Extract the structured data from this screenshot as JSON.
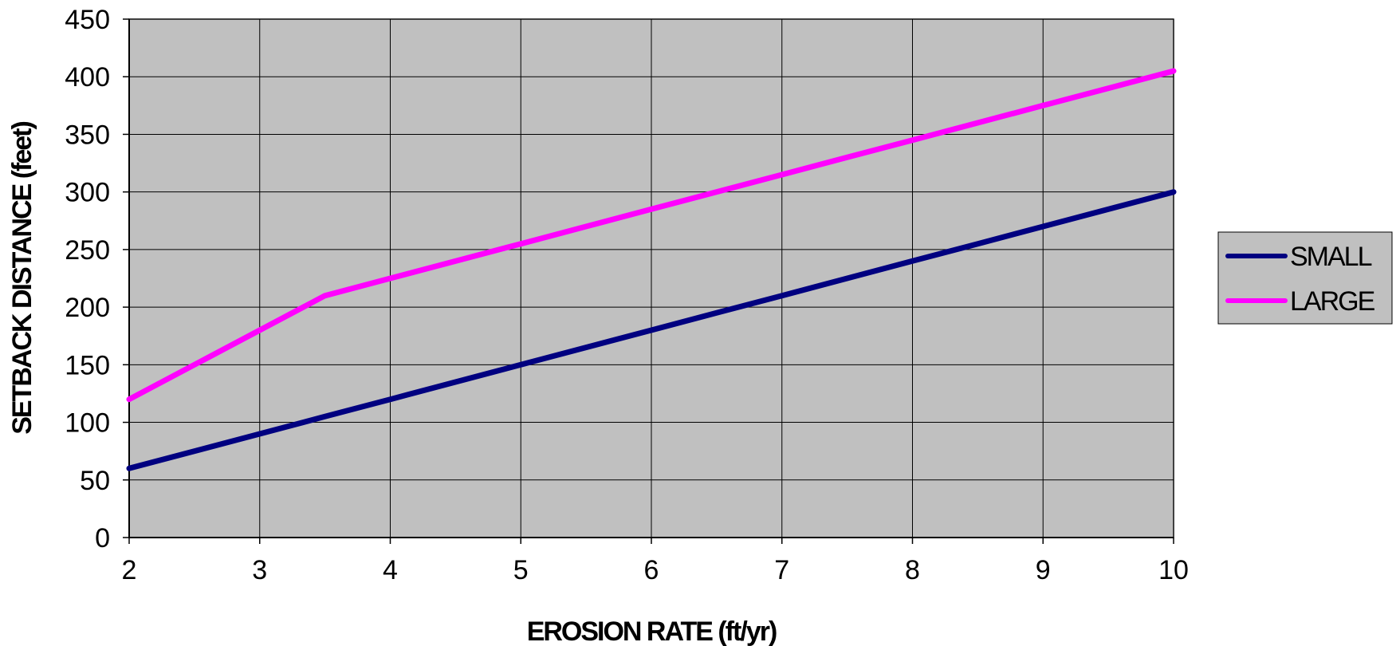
{
  "chart_data": {
    "type": "line",
    "title": "",
    "xlabel": "EROSION RATE (ft/yr)",
    "ylabel": "SETBACK DISTANCE (feet)",
    "xlim": [
      2,
      10
    ],
    "ylim": [
      0,
      450
    ],
    "x_ticks": [
      2,
      3,
      4,
      5,
      6,
      7,
      8,
      9,
      10
    ],
    "y_ticks": [
      0,
      50,
      100,
      150,
      200,
      250,
      300,
      350,
      400,
      450
    ],
    "grid": true,
    "plot_background": "#C0C0C0",
    "legend_position": "right",
    "series": [
      {
        "name": "SMALL",
        "color": "#000080",
        "points": [
          [
            2,
            60
          ],
          [
            3,
            90
          ],
          [
            3.5,
            105
          ],
          [
            4,
            120
          ],
          [
            5,
            150
          ],
          [
            6,
            180
          ],
          [
            6.5,
            195
          ],
          [
            7,
            210
          ],
          [
            7.5,
            225
          ],
          [
            8,
            240
          ],
          [
            8.5,
            255
          ],
          [
            9,
            270
          ],
          [
            10,
            300
          ]
        ]
      },
      {
        "name": "LARGE",
        "color": "#FF00FF",
        "points": [
          [
            2,
            120
          ],
          [
            3,
            180
          ],
          [
            3.5,
            210
          ],
          [
            4,
            225
          ],
          [
            5,
            255
          ],
          [
            5.5,
            270
          ],
          [
            6,
            285
          ],
          [
            7,
            315
          ],
          [
            7.5,
            330
          ],
          [
            8,
            345
          ],
          [
            9,
            375
          ],
          [
            10,
            405
          ]
        ]
      }
    ]
  }
}
